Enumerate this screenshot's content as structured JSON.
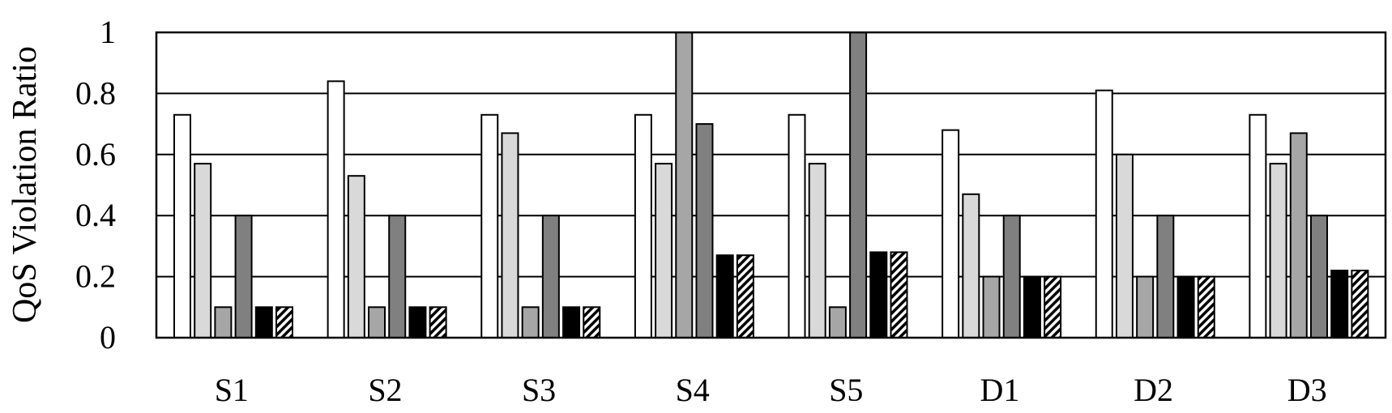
{
  "chart_data": {
    "type": "bar",
    "ylabel": "QoS Violation Ratio",
    "xlabel": "",
    "ylim": [
      0,
      1
    ],
    "yticks": [
      "0",
      "0.2",
      "0.4",
      "0.6",
      "0.8",
      "1"
    ],
    "grid": true,
    "categories": [
      "S1",
      "S2",
      "S3",
      "S4",
      "S5",
      "D1",
      "D2",
      "D3"
    ],
    "series": [
      {
        "fill": "#ffffff",
        "pattern": "solid",
        "values": [
          0.73,
          0.84,
          0.73,
          0.73,
          0.73,
          0.68,
          0.81,
          0.73
        ]
      },
      {
        "fill": "#d9d9d9",
        "pattern": "solid",
        "values": [
          0.57,
          0.53,
          0.67,
          0.57,
          0.57,
          0.47,
          0.6,
          0.57
        ]
      },
      {
        "fill": "#a6a6a6",
        "pattern": "solid",
        "values": [
          0.1,
          0.1,
          0.1,
          1.0,
          0.1,
          0.2,
          0.2,
          0.67
        ]
      },
      {
        "fill": "#808080",
        "pattern": "solid",
        "values": [
          0.4,
          0.4,
          0.4,
          0.7,
          1.0,
          0.4,
          0.4,
          0.4
        ]
      },
      {
        "fill": "#000000",
        "pattern": "solid",
        "values": [
          0.1,
          0.1,
          0.1,
          0.27,
          0.28,
          0.2,
          0.2,
          0.22
        ]
      },
      {
        "fill": "#ffffff",
        "pattern": "diagonal-hatch",
        "values": [
          0.1,
          0.1,
          0.1,
          0.27,
          0.28,
          0.2,
          0.2,
          0.22
        ]
      }
    ]
  }
}
